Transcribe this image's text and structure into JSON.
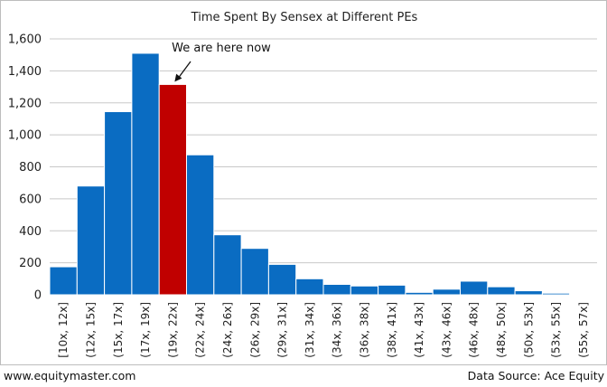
{
  "chart_data": {
    "type": "bar",
    "title": "Time Spent By Sensex at Different PEs",
    "categories": [
      "[10x, 12x]",
      "(12x, 15x]",
      "(15x, 17x]",
      "(17x, 19x]",
      "(19x, 22x]",
      "(22x, 24x]",
      "(24x, 26x]",
      "(26x, 29x]",
      "(29x, 31x]",
      "(31x, 34x]",
      "(34x, 36x]",
      "(36x, 38x]",
      "(38x, 41x]",
      "(41x, 43x]",
      "(43x, 46x]",
      "(46x, 48x]",
      "(48x, 50x]",
      "(50x, 53x]",
      "(53x, 55x]",
      "(55x, 57x]"
    ],
    "values": [
      175,
      680,
      1145,
      1510,
      1315,
      875,
      375,
      290,
      190,
      100,
      65,
      55,
      60,
      15,
      35,
      85,
      50,
      25,
      10,
      5
    ],
    "highlight_index": 4,
    "ylim": [
      0,
      1600
    ],
    "yticks": [
      0,
      200,
      400,
      600,
      800,
      1000,
      1200,
      1400,
      1600
    ],
    "ytick_labels": [
      "0",
      "200",
      "400",
      "600",
      "800",
      "1,000",
      "1,200",
      "1,400",
      "1,600"
    ],
    "grid": true,
    "annotation": "We are here now",
    "colors": {
      "bar": "#0a6cc2",
      "highlight": "#c00000",
      "grid": "#c8c8c8",
      "axis": "#9a9a9a"
    }
  },
  "footer": {
    "left": "www.equitymaster.com",
    "right": "Data Source: Ace Equity"
  }
}
